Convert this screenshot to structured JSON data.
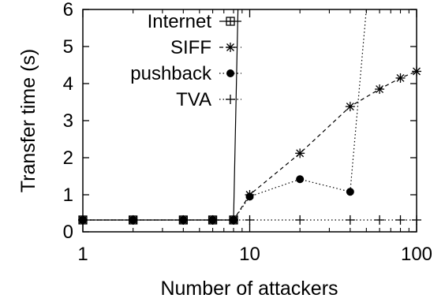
{
  "chart_data": {
    "type": "line",
    "xlabel": "Number of attackers",
    "ylabel": "Transfer time (s)",
    "xscale": "log",
    "xlim": [
      1,
      100
    ],
    "ylim": [
      0,
      6
    ],
    "xticks": [
      1,
      10,
      100
    ],
    "xtick_labels": [
      "1",
      "10",
      "100"
    ],
    "yticks": [
      0,
      1,
      2,
      3,
      4,
      5,
      6
    ],
    "ytick_labels": [
      "0",
      "1",
      "2",
      "3",
      "4",
      "5",
      "6"
    ],
    "grid": false,
    "legend_position": "top-left",
    "series": [
      {
        "name": "Internet",
        "marker": "square-plus",
        "line": "solid",
        "points": [
          [
            1,
            0.32
          ],
          [
            2,
            0.32
          ],
          [
            4,
            0.32
          ],
          [
            6,
            0.32
          ],
          [
            8,
            0.32
          ],
          [
            8.5,
            6.0
          ]
        ]
      },
      {
        "name": "SIFF",
        "marker": "star",
        "line": "dashed",
        "points": [
          [
            1,
            0.32
          ],
          [
            2,
            0.32
          ],
          [
            4,
            0.32
          ],
          [
            6,
            0.32
          ],
          [
            8,
            0.32
          ],
          [
            10,
            1.0
          ],
          [
            20,
            2.12
          ],
          [
            40,
            3.38
          ],
          [
            60,
            3.85
          ],
          [
            80,
            4.15
          ],
          [
            100,
            4.33
          ]
        ]
      },
      {
        "name": "pushback",
        "marker": "filled-circle",
        "line": "dotted",
        "points": [
          [
            1,
            0.32
          ],
          [
            2,
            0.32
          ],
          [
            4,
            0.32
          ],
          [
            6,
            0.32
          ],
          [
            8,
            0.32
          ],
          [
            10,
            0.95
          ],
          [
            20,
            1.42
          ],
          [
            40,
            1.08
          ],
          [
            50,
            6.0
          ]
        ]
      },
      {
        "name": "TVA",
        "marker": "plus",
        "line": "dotted",
        "points": [
          [
            1,
            0.32
          ],
          [
            2,
            0.32
          ],
          [
            4,
            0.32
          ],
          [
            6,
            0.32
          ],
          [
            8,
            0.32
          ],
          [
            10,
            0.32
          ],
          [
            20,
            0.32
          ],
          [
            40,
            0.32
          ],
          [
            60,
            0.32
          ],
          [
            80,
            0.32
          ],
          [
            100,
            0.32
          ]
        ]
      }
    ]
  }
}
